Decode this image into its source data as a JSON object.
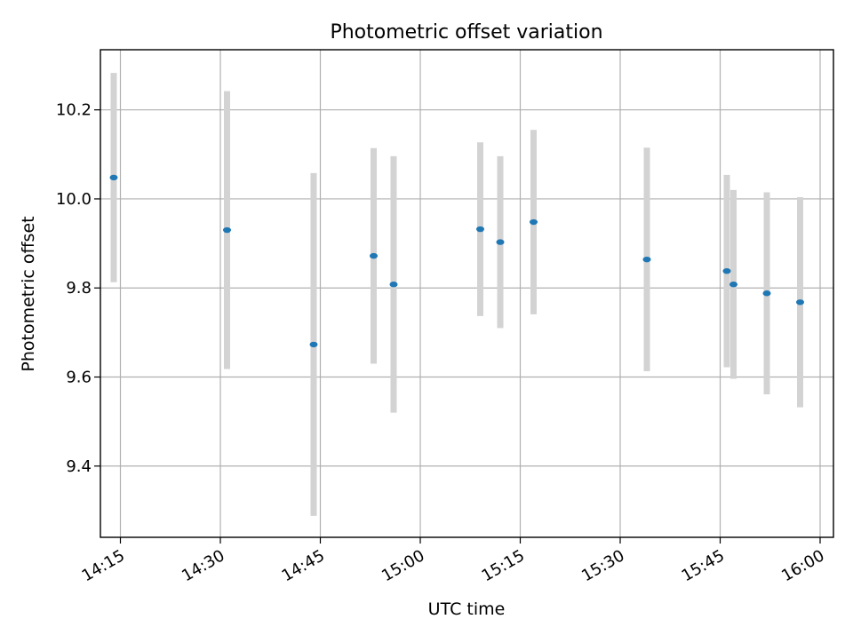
{
  "chart_data": {
    "type": "scatter",
    "title": "Photometric offset variation",
    "xlabel": "UTC time",
    "ylabel": "Photometric offset",
    "xlim": [
      "14:12",
      "16:02"
    ],
    "ylim": [
      9.24,
      10.335
    ],
    "x_ticks": [
      "14:15",
      "14:30",
      "14:45",
      "15:00",
      "15:15",
      "15:30",
      "15:45",
      "16:00"
    ],
    "y_ticks": [
      9.4,
      9.6,
      9.8,
      10.0,
      10.2
    ],
    "y_tick_labels": [
      "9.4",
      "9.6",
      "9.8",
      "10.0",
      "10.2"
    ],
    "grid": true,
    "legend": "none",
    "marker_color": "#1f77b4",
    "errorbar_color": "#d3d3d3",
    "points": [
      {
        "x": "14:14",
        "y": 10.048,
        "err": 0.235
      },
      {
        "x": "14:31",
        "y": 9.93,
        "err": 0.312
      },
      {
        "x": "14:44",
        "y": 9.673,
        "err": 0.385
      },
      {
        "x": "14:53",
        "y": 9.872,
        "err": 0.242
      },
      {
        "x": "14:56",
        "y": 9.808,
        "err": 0.288
      },
      {
        "x": "15:09",
        "y": 9.932,
        "err": 0.195
      },
      {
        "x": "15:12",
        "y": 9.903,
        "err": 0.193
      },
      {
        "x": "15:17",
        "y": 9.948,
        "err": 0.207
      },
      {
        "x": "15:34",
        "y": 9.864,
        "err": 0.251
      },
      {
        "x": "15:46",
        "y": 9.838,
        "err": 0.216
      },
      {
        "x": "15:47",
        "y": 9.808,
        "err": 0.212
      },
      {
        "x": "15:52",
        "y": 9.788,
        "err": 0.227
      },
      {
        "x": "15:57",
        "y": 9.768,
        "err": 0.236
      }
    ]
  }
}
